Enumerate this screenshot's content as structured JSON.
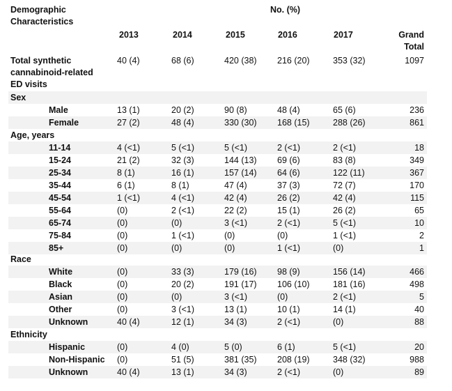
{
  "header": {
    "demographic_title_line1": "Demographic",
    "demographic_title_line2": "Characteristics",
    "no_pct": "No. (%)",
    "years": [
      "2013",
      "2014",
      "2015",
      "2016",
      "2017"
    ],
    "grand_line1": "Grand",
    "grand_line2": "Total"
  },
  "total": {
    "label_line1": "Total synthetic",
    "label_line2": "cannabinoid-related",
    "label_line3": "ED visits",
    "values": [
      "40 (4)",
      "68 (6)",
      "420 (38)",
      "216 (20)",
      "353 (32)"
    ],
    "grand": "1097"
  },
  "sections": {
    "sex": {
      "title": "Sex",
      "rows": [
        {
          "label": "Male",
          "values": [
            "13 (1)",
            "20 (2)",
            "90 (8)",
            "48 (4)",
            "65 (6)"
          ],
          "total": "236"
        },
        {
          "label": "Female",
          "values": [
            "27 (2)",
            "48 (4)",
            "330 (30)",
            "168 (15)",
            "288 (26)"
          ],
          "total": "861"
        }
      ]
    },
    "age": {
      "title": "Age, years",
      "rows": [
        {
          "label": "11-14",
          "values": [
            "4 (<1)",
            "5 (<1)",
            "5 (<1)",
            "2 (<1)",
            "2 (<1)"
          ],
          "total": "18"
        },
        {
          "label": "15-24",
          "values": [
            "21 (2)",
            "32 (3)",
            "144 (13)",
            "69 (6)",
            "83 (8)"
          ],
          "total": "349"
        },
        {
          "label": "25-34",
          "values": [
            "8 (1)",
            "16 (1)",
            "157 (14)",
            "64 (6)",
            "122 (11)"
          ],
          "total": "367"
        },
        {
          "label": "35-44",
          "values": [
            "6 (1)",
            "8 (1)",
            "47 (4)",
            "37 (3)",
            "72 (7)"
          ],
          "total": "170"
        },
        {
          "label": "45-54",
          "values": [
            "1 (<1)",
            "4 (<1)",
            "42 (4)",
            "26 (2)",
            "42 (4)"
          ],
          "total": "115"
        },
        {
          "label": "55-64",
          "values": [
            "(0)",
            "2 (<1)",
            "22 (2)",
            "15 (1)",
            "26 (2)"
          ],
          "total": "65"
        },
        {
          "label": "65-74",
          "values": [
            "(0)",
            "(0)",
            "3 (<1)",
            "2 (<1)",
            "5 (<1)"
          ],
          "total": "10"
        },
        {
          "label": "75-84",
          "values": [
            "(0)",
            "1 (<1)",
            "(0)",
            "(0)",
            "1 (<1)"
          ],
          "total": "2"
        },
        {
          "label": "85+",
          "values": [
            "(0)",
            "(0)",
            "(0)",
            "1 (<1)",
            "(0)"
          ],
          "total": "1"
        }
      ]
    },
    "race": {
      "title": "Race",
      "rows": [
        {
          "label": "White",
          "values": [
            "(0)",
            "33 (3)",
            "179 (16)",
            "98 (9)",
            "156 (14)"
          ],
          "total": "466"
        },
        {
          "label": "Black",
          "values": [
            "(0)",
            "20 (2)",
            "191 (17)",
            "106 (10)",
            "181 (16)"
          ],
          "total": "498"
        },
        {
          "label": "Asian",
          "values": [
            "(0)",
            "(0)",
            "3 (<1)",
            "(0)",
            "2 (<1)"
          ],
          "total": "5"
        },
        {
          "label": "Other",
          "values": [
            "(0)",
            "3 (<1)",
            "13 (1)",
            "10 (1)",
            "14 (1)"
          ],
          "total": "40"
        },
        {
          "label": "Unknown",
          "values": [
            "40 (4)",
            "12 (1)",
            "34 (3)",
            "2 (<1)",
            "(0)"
          ],
          "total": "88"
        }
      ]
    },
    "ethnicity": {
      "title": "Ethnicity",
      "rows": [
        {
          "label": "Hispanic",
          "values": [
            "(0)",
            "4 (0)",
            "5 (0)",
            "6 (1)",
            "5 (<1)"
          ],
          "total": "20"
        },
        {
          "label": "Non-Hispanic",
          "values": [
            "(0)",
            "51 (5)",
            "381 (35)",
            "208 (19)",
            "348 (32)"
          ],
          "total": "988"
        },
        {
          "label": "Unknown",
          "values": [
            "40 (4)",
            "13 (1)",
            "34 (3)",
            "2 (<1)",
            "(0)"
          ],
          "total": "89"
        }
      ]
    }
  },
  "colors": {
    "shade": "#f2f2f2",
    "text": "#111111"
  }
}
